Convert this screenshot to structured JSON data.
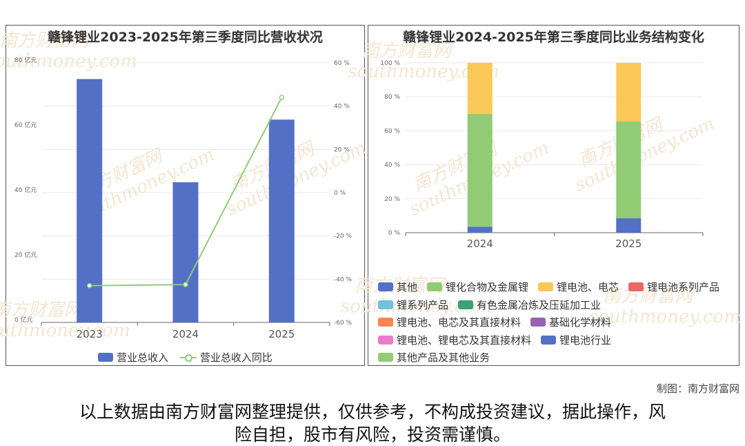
{
  "colors": {
    "bar_blue": "#5470c6",
    "line_green": "#91cc75",
    "yellow": "#fac858",
    "red": "#ee6666",
    "sky": "#73c0de",
    "teal": "#3ba272",
    "orange": "#fc8452",
    "purple": "#9a60b4",
    "pink": "#ea7ccc"
  },
  "watermark": {
    "cn": "南方财富网",
    "en": "southmoney.com"
  },
  "footer": {
    "credit": "制图：南方财富网",
    "disclaimer_line1": "以上数据由南方财富网整理提供，仅供参考，不构成投资建议，据此操作，风",
    "disclaimer_line2": "险自担，股市有风险，投资需谨慎。"
  },
  "chart_data": [
    {
      "type": "bar",
      "title": "赣锋锂业2023-2025年第三季度同比营收状况",
      "categories": [
        "2023",
        "2024",
        "2025"
      ],
      "left_axis": {
        "ticks": [
          "0 亿元",
          "20 亿元",
          "40 亿元",
          "60 亿元",
          "80 亿元"
        ],
        "range": [
          0,
          80
        ]
      },
      "right_axis": {
        "ticks": [
          "-60 %",
          "-40 %",
          "-20 %",
          "0 %",
          "20 %",
          "40 %",
          "60 %"
        ],
        "range": [
          -60,
          60
        ]
      },
      "series": [
        {
          "name": "营业总收入",
          "type": "bar",
          "axis": "left",
          "values": [
            75.0,
            43.2,
            62.5
          ]
        },
        {
          "name": "营业总收入同比",
          "type": "line",
          "axis": "right",
          "values": [
            -43.0,
            -42.5,
            44.0
          ]
        }
      ],
      "legend_position": "bottom"
    },
    {
      "type": "bar",
      "stacked": true,
      "title": "赣锋锂业2024-2025年第三季度同比业务结构变化",
      "categories": [
        "2024",
        "2025"
      ],
      "y_axis": {
        "ticks": [
          "0 %",
          "20 %",
          "40 %",
          "60 %",
          "80 %",
          "100 %"
        ],
        "range": [
          0,
          100
        ]
      },
      "series": [
        {
          "name": "其他",
          "values": [
            3.5,
            8.5
          ],
          "color": "#5470c6"
        },
        {
          "name": "锂化合物及金属锂",
          "values": [
            66.5,
            57.0
          ],
          "color": "#91cc75"
        },
        {
          "name": "锂电池、电芯",
          "values": [
            30.0,
            34.5
          ],
          "color": "#fac858"
        },
        {
          "name": "锂电池系列产品",
          "values": [
            0,
            0
          ],
          "color": "#ee6666"
        },
        {
          "name": "锂系列产品",
          "values": [
            0,
            0
          ],
          "color": "#73c0de"
        },
        {
          "name": "有色金属冶炼及压延加工业",
          "values": [
            0,
            0
          ],
          "color": "#3ba272"
        },
        {
          "name": "锂电池、电芯及其直接材料",
          "values": [
            0,
            0
          ],
          "color": "#fc8452"
        },
        {
          "name": "基础化学材料",
          "values": [
            0,
            0
          ],
          "color": "#9a60b4"
        },
        {
          "name": "锂电池、锂电芯及其直接材料",
          "values": [
            0,
            0
          ],
          "color": "#ea7ccc"
        },
        {
          "name": "锂电池行业",
          "values": [
            0,
            0
          ],
          "color": "#5470c6"
        },
        {
          "name": "其他产品及其他业务",
          "values": [
            0,
            0
          ],
          "color": "#91cc75"
        }
      ],
      "legend_position": "bottom"
    }
  ]
}
